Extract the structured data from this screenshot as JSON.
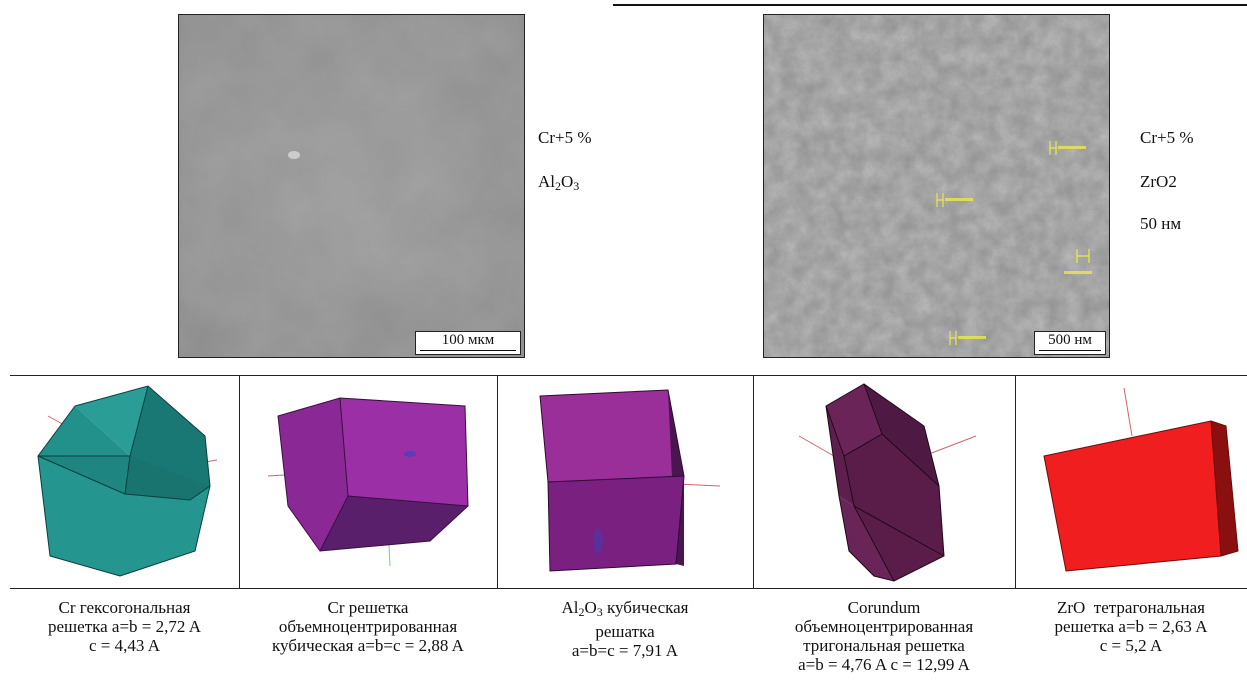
{
  "micrographs": [
    {
      "scale_label": "100 мкм",
      "side_text": [
        "Cr+5 %",
        "Al",
        "2",
        "O",
        "3"
      ]
    },
    {
      "scale_label": "500 нм",
      "side_text": [
        "Cr+5 %",
        "ZrO",
        "2",
        "50 нм"
      ]
    }
  ],
  "crystals": [
    {
      "shape": "hexagonal-prism",
      "color": "#1f8b85",
      "caption_lines": [
        "Cr гексогональная",
        "решетка a=b = 2,72 A",
        "c = 4,43 A"
      ]
    },
    {
      "shape": "cube",
      "color": "#8e2b9a",
      "caption_lines": [
        "Cr решетка",
        "объемноцентрированная",
        "кубическая a=b=c = 2,88 A"
      ]
    },
    {
      "shape": "cube-front",
      "color": "#8c2a8a",
      "caption_prefix": "Al",
      "caption_sub1": "2",
      "caption_mid": "O",
      "caption_sub2": "3",
      "caption_rest": " кубическая",
      "caption_lines": [
        "решатка",
        "a=b=c = 7,91 A"
      ]
    },
    {
      "shape": "trigonal-prism",
      "color": "#5e1f4e",
      "caption_lines": [
        "Corundum",
        "объемноцентрированная",
        "тригональная решетка",
        "a=b = 4,76 A  c = 12,99 A"
      ]
    },
    {
      "shape": "tetragonal-box",
      "color": "#f01e1e",
      "caption_lines": [
        "ZrO  тетрагональная",
        "решетка a=b = 2,63 A",
        "c = 5,2 A"
      ]
    }
  ]
}
